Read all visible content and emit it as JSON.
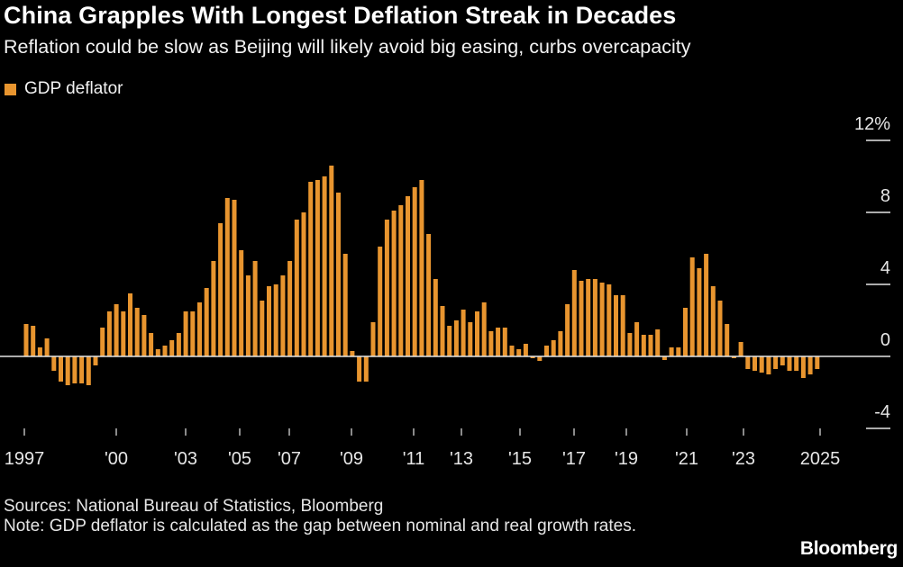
{
  "header": {
    "title": "China Grapples With Longest Deflation Streak in Decades",
    "subtitle": "Reflation could be slow as Beijing will likely avoid big easing, curbs overcapacity"
  },
  "footer": {
    "sources": "Sources: National Bureau of Statistics, Bloomberg",
    "note": "Note: GDP deflator is calculated as the gap between nominal and real growth rates."
  },
  "logo": "Bloomberg",
  "colors": {
    "bar": "#e8952f",
    "background": "#000000",
    "axis": "#e6e6e6"
  },
  "chart_data": {
    "type": "bar",
    "title": "China Grapples With Longest Deflation Streak in Decades",
    "frequency": "quarterly",
    "x_start": "1997 Q1",
    "x_end": "2025 Q3",
    "series": [
      {
        "name": "GDP deflator",
        "values": [
          1.8,
          1.7,
          0.5,
          1.0,
          -0.8,
          -1.4,
          -1.6,
          -1.5,
          -1.5,
          -1.6,
          -0.5,
          1.6,
          2.5,
          2.9,
          2.5,
          3.5,
          2.7,
          2.3,
          1.3,
          0.4,
          0.6,
          0.9,
          1.3,
          2.5,
          2.5,
          3.0,
          3.8,
          5.3,
          7.4,
          8.8,
          8.7,
          5.9,
          4.5,
          5.3,
          3.1,
          3.9,
          4.0,
          4.5,
          5.3,
          7.6,
          8.0,
          9.7,
          9.8,
          10.0,
          10.6,
          9.1,
          5.7,
          0.3,
          -1.4,
          -1.4,
          1.9,
          6.1,
          7.6,
          8.1,
          8.4,
          8.9,
          9.4,
          9.8,
          6.8,
          4.3,
          2.8,
          1.7,
          2.0,
          2.6,
          1.9,
          2.5,
          3.0,
          1.4,
          1.6,
          1.6,
          0.6,
          0.4,
          0.7,
          -0.1,
          -0.25,
          0.6,
          0.9,
          1.4,
          2.9,
          4.8,
          4.2,
          4.3,
          4.3,
          4.1,
          4.0,
          3.4,
          3.4,
          1.3,
          1.9,
          1.2,
          1.2,
          1.5,
          -0.2,
          0.5,
          0.5,
          2.7,
          5.5,
          4.9,
          5.7,
          3.9,
          3.1,
          1.8,
          -0.1,
          0.8,
          -0.7,
          -0.8,
          -0.9,
          -1.0,
          -0.7,
          -0.5,
          -0.8,
          -0.8,
          -1.2,
          -1.0,
          -0.7
        ]
      }
    ],
    "x_tick_labels": [
      "1997",
      "'00",
      "'03",
      "'05",
      "'07",
      "'09",
      "'11",
      "'13",
      "'15",
      "'17",
      "'19",
      "'21",
      "'23",
      "2025"
    ],
    "y_ticks": [
      12,
      8,
      4,
      0,
      -4
    ],
    "y_tick_labels": [
      "12%",
      "8",
      "4",
      "0",
      "-4"
    ],
    "ylim": [
      -4,
      12
    ],
    "y_axis_side": "right",
    "grid": false,
    "legend_position": "top-left"
  }
}
